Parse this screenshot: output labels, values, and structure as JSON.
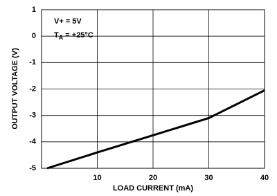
{
  "chart_data": {
    "type": "line",
    "x_label": "LOAD CURRENT (mA)",
    "y_label": "OUTPUT VOLTAGE (V)",
    "annotation": "V+ = 5V",
    "annotation_2": {
      "symbol": "T",
      "subscript": "A",
      "text": " = +25°C"
    },
    "x": [
      1,
      10,
      20,
      30,
      40
    ],
    "values": [
      -5,
      -4.4,
      -3.75,
      -3.1,
      -2.05
    ],
    "color": "#000000",
    "xlim": [
      0,
      40
    ],
    "xticks": [
      10,
      20,
      30,
      40
    ],
    "ylim": [
      -5,
      1
    ],
    "yticks": [
      1,
      0,
      -1,
      -2,
      -3,
      -4,
      -5
    ],
    "grid": true
  }
}
